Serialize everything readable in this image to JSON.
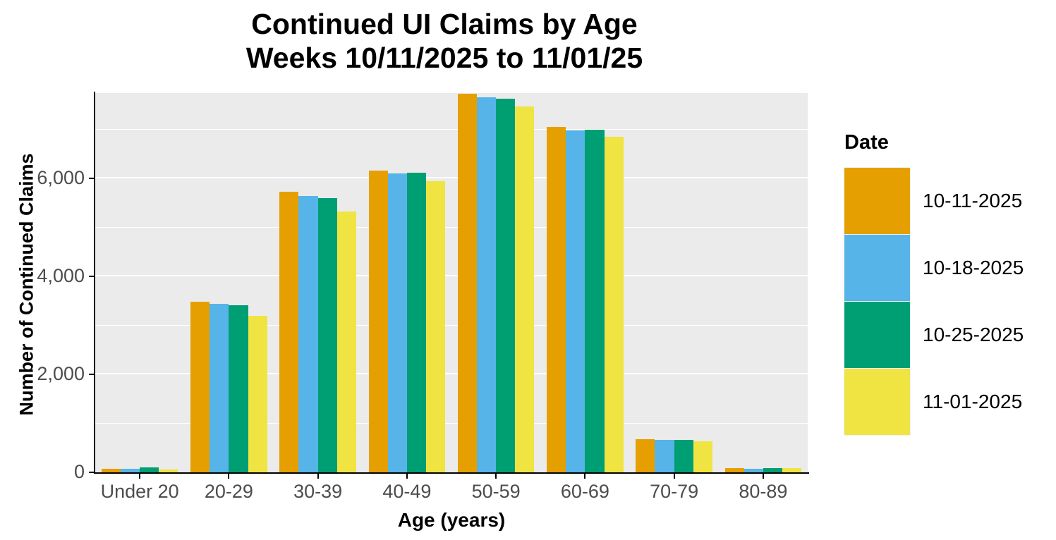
{
  "title": {
    "line1": "Continued UI Claims by Age",
    "line2": "Weeks 10/11/2025 to 11/01/25"
  },
  "axes": {
    "y_title": "Number of Continued Claims",
    "x_title": "Age (years)",
    "y_ticks": [
      {
        "label": "0",
        "value": 0
      },
      {
        "label": "2,000",
        "value": 2000
      },
      {
        "label": "4,000",
        "value": 4000
      },
      {
        "label": "6,000",
        "value": 6000
      }
    ],
    "minor_gridlines": [
      1000,
      3000,
      5000,
      7000
    ],
    "major_gridlines": [
      2000,
      4000,
      6000
    ],
    "y_max": 7750
  },
  "legend": {
    "title": "Date",
    "entries": [
      {
        "label": "10-11-2025",
        "color": "#E69F00"
      },
      {
        "label": "10-18-2025",
        "color": "#56B4E9"
      },
      {
        "label": "10-25-2025",
        "color": "#009E73"
      },
      {
        "label": "11-01-2025",
        "color": "#F0E442"
      }
    ]
  },
  "colors": {
    "panel_background": "#EBEBEB",
    "gridline": "#FFFFFF",
    "tick_text": "#4D4D4D",
    "axis_line": "#000000"
  },
  "chart_data": {
    "type": "bar",
    "title": "Continued UI Claims by Age — Weeks 10/11/2025 to 11/01/25",
    "xlabel": "Age (years)",
    "ylabel": "Number of Continued Claims",
    "ylim": [
      0,
      7750
    ],
    "grid": true,
    "legend_position": "right",
    "categories": [
      "Under 20",
      "20-29",
      "30-39",
      "40-49",
      "50-59",
      "60-69",
      "70-79",
      "80-89"
    ],
    "series": [
      {
        "name": "10-11-2025",
        "color": "#E69F00",
        "values": [
          75,
          3490,
          5730,
          6160,
          7730,
          7060,
          680,
          80
        ]
      },
      {
        "name": "10-18-2025",
        "color": "#56B4E9",
        "values": [
          70,
          3440,
          5650,
          6110,
          7660,
          6990,
          670,
          75
        ]
      },
      {
        "name": "10-25-2025",
        "color": "#009E73",
        "values": [
          95,
          3410,
          5600,
          6120,
          7630,
          7000,
          670,
          90
        ]
      },
      {
        "name": "11-01-2025",
        "color": "#F0E442",
        "values": [
          60,
          3200,
          5330,
          5950,
          7480,
          6860,
          640,
          80
        ]
      }
    ]
  }
}
